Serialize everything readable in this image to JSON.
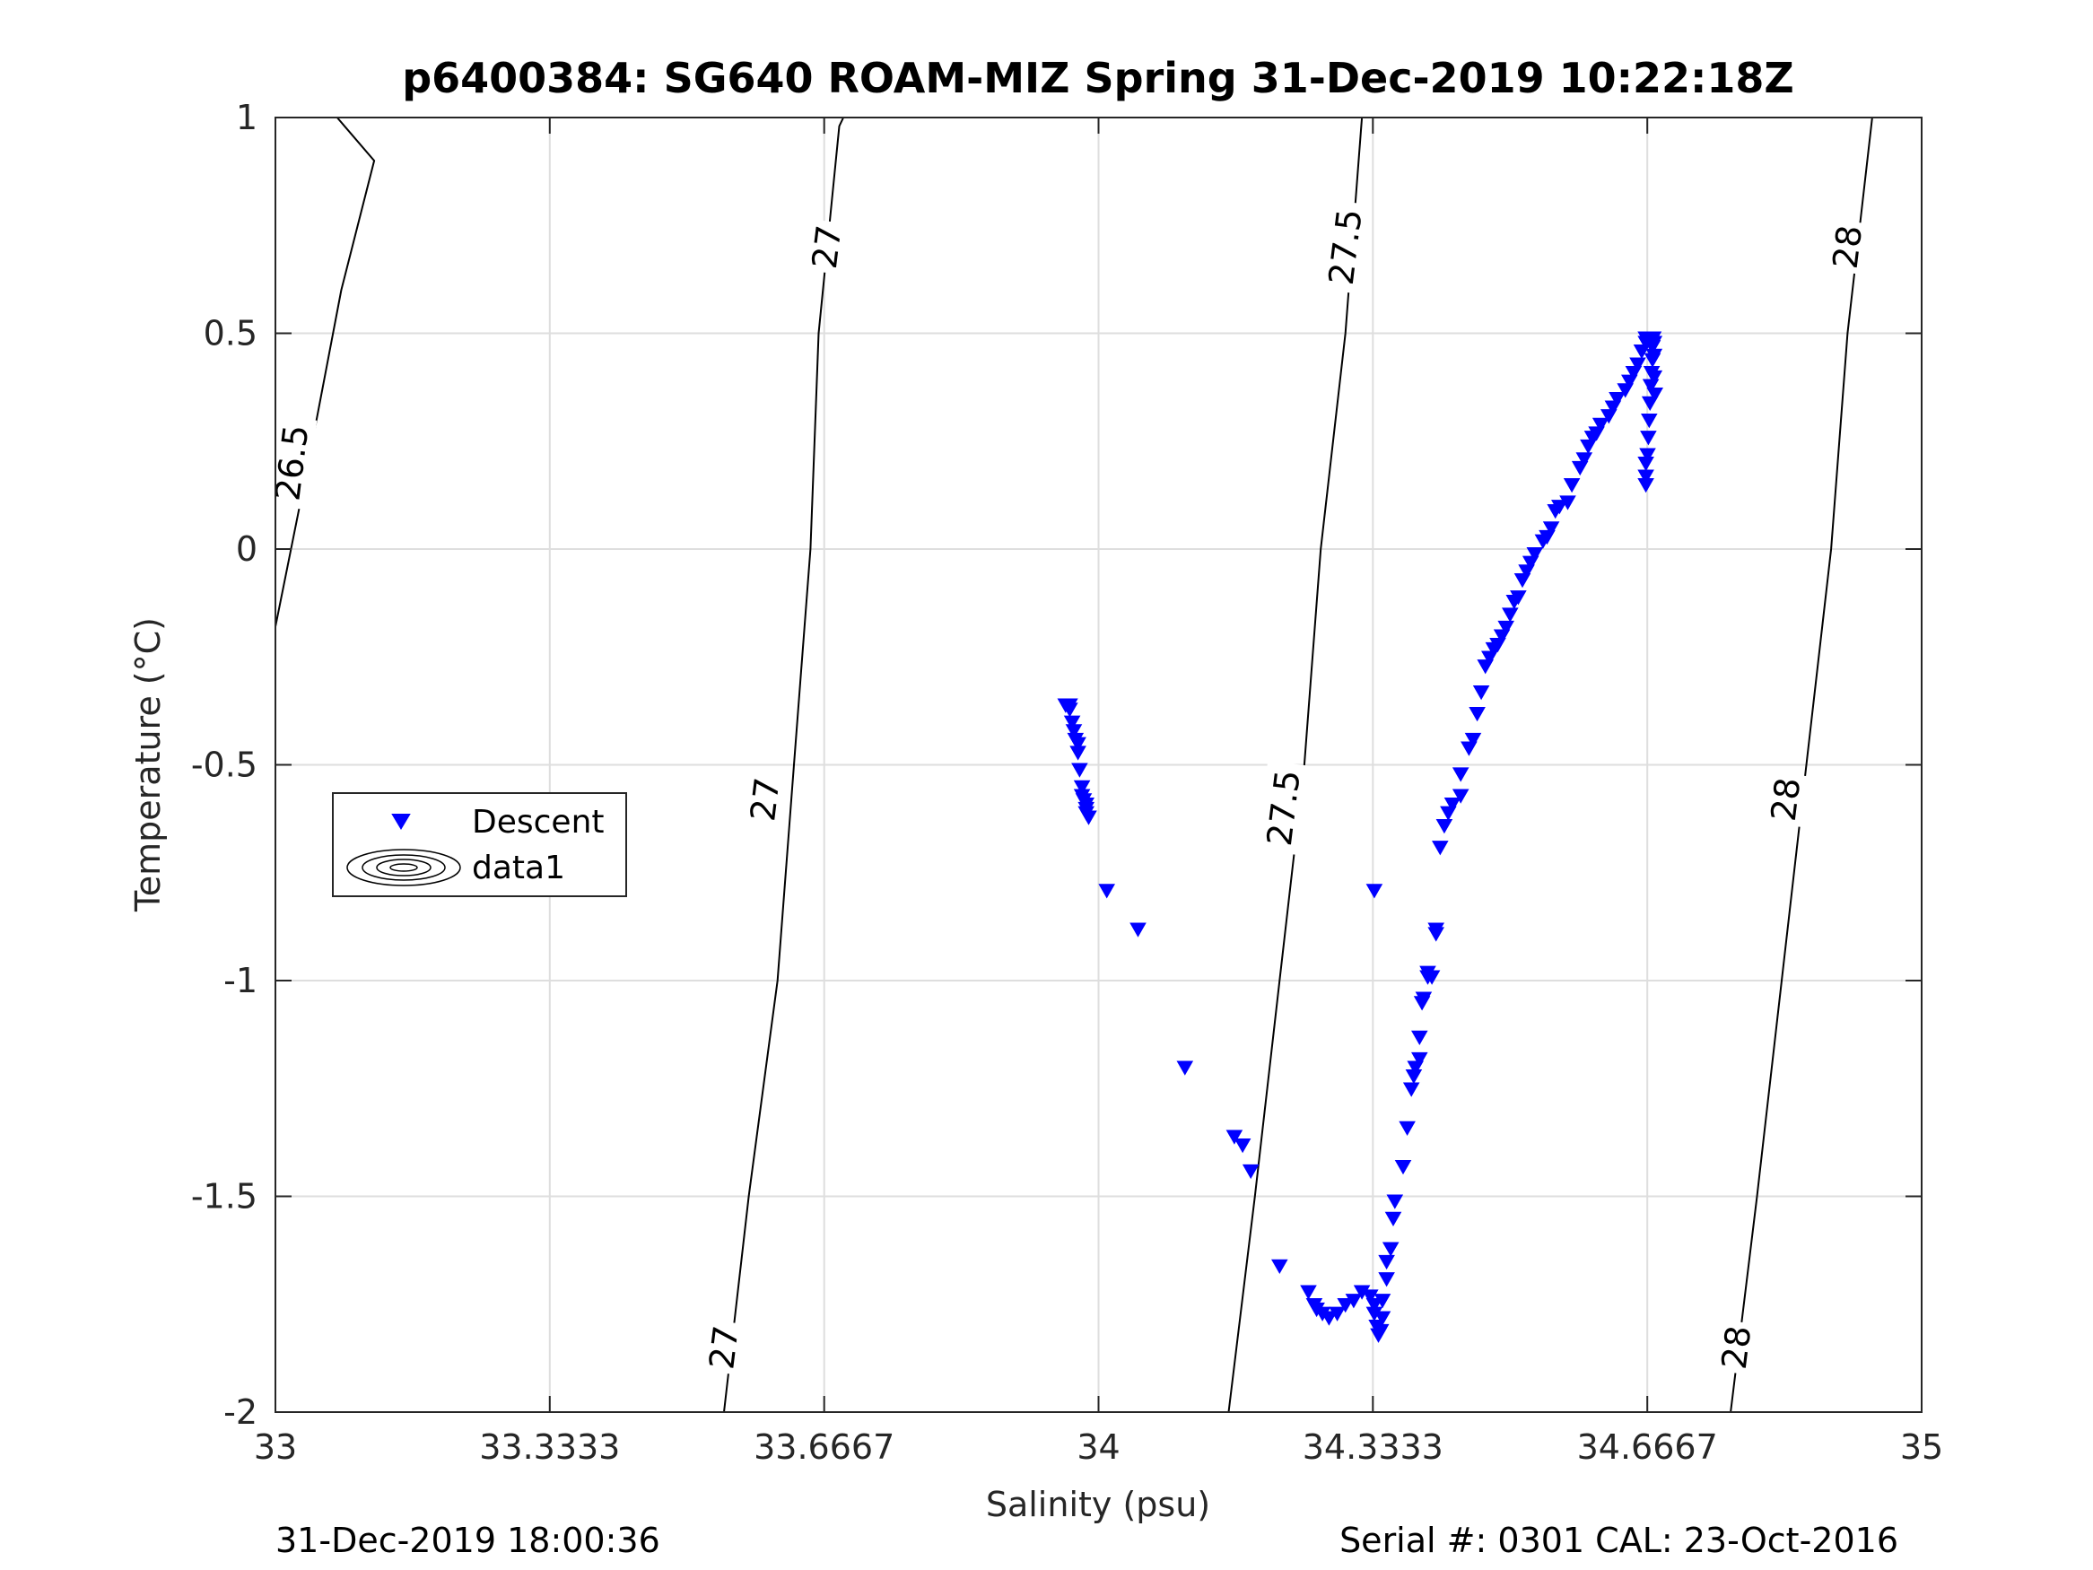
{
  "chart_data": {
    "type": "scatter",
    "title": "p6400384: SG640 ROAM-MIZ Spring 31-Dec-2019 10:22:18Z",
    "xlabel": "Salinity (psu)",
    "ylabel": "Temperature (°C)",
    "xlim": [
      33,
      35
    ],
    "ylim": [
      -2,
      1
    ],
    "xticks": [
      33,
      33.3333,
      33.6667,
      34,
      34.3333,
      34.6667,
      35
    ],
    "xtick_labels": [
      "33",
      "33.3333",
      "33.6667",
      "34",
      "34.3333",
      "34.6667",
      "35"
    ],
    "yticks": [
      -2,
      -1.5,
      -1,
      -0.5,
      0,
      0.5,
      1
    ],
    "ytick_labels": [
      "-2",
      "-1.5",
      "-1",
      "-0.5",
      "0",
      "0.5",
      "1"
    ],
    "grid": true,
    "legend": {
      "placement": "west",
      "entries": [
        {
          "label": "Descent",
          "marker": "triangle-down",
          "color": "#0000ff"
        },
        {
          "label": "data1",
          "marker": "contour",
          "color": "#000000"
        }
      ]
    },
    "contours": [
      {
        "level": "26.5",
        "points": [
          [
            33.0,
            -0.18
          ],
          [
            33.04,
            0.2
          ],
          [
            33.08,
            0.6
          ],
          [
            33.12,
            0.9
          ],
          [
            33.075,
            1.0
          ]
        ],
        "labels": [
          {
            "text": "26.5",
            "x": 33.02,
            "y": 0.2
          }
        ]
      },
      {
        "level": "27",
        "points": [
          [
            33.545,
            -2.0
          ],
          [
            33.575,
            -1.5
          ],
          [
            33.61,
            -1.0
          ],
          [
            33.63,
            -0.5
          ],
          [
            33.65,
            0.0
          ],
          [
            33.66,
            0.5
          ],
          [
            33.685,
            0.98
          ],
          [
            33.69,
            1.0
          ]
        ],
        "labels": [
          {
            "text": "27",
            "x": 33.545,
            "y": -1.85
          },
          {
            "text": "27",
            "x": 33.595,
            "y": -0.58
          },
          {
            "text": "27",
            "x": 33.67,
            "y": 0.7
          }
        ]
      },
      {
        "level": "27.5",
        "points": [
          [
            34.158,
            -2.0
          ],
          [
            34.19,
            -1.5
          ],
          [
            34.22,
            -1.0
          ],
          [
            34.25,
            -0.5
          ],
          [
            34.27,
            0.0
          ],
          [
            34.3,
            0.5
          ],
          [
            34.32,
            1.0
          ]
        ],
        "labels": [
          {
            "text": "27.5",
            "x": 34.225,
            "y": -0.6
          },
          {
            "text": "27.5",
            "x": 34.3,
            "y": 0.7
          }
        ]
      },
      {
        "level": "28",
        "points": [
          [
            34.768,
            -2.0
          ],
          [
            34.8,
            -1.5
          ],
          [
            34.83,
            -1.0
          ],
          [
            34.86,
            -0.5
          ],
          [
            34.89,
            0.0
          ],
          [
            34.91,
            0.5
          ],
          [
            34.94,
            1.0
          ]
        ],
        "labels": [
          {
            "text": "28",
            "x": 34.775,
            "y": -1.85
          },
          {
            "text": "28",
            "x": 34.835,
            "y": -0.58
          },
          {
            "text": "28",
            "x": 34.91,
            "y": 0.7
          }
        ]
      }
    ],
    "series": [
      {
        "name": "Descent",
        "marker": "triangle-down",
        "color": "#0000ff",
        "x": [
          33.96,
          33.965,
          33.965,
          33.968,
          33.97,
          33.972,
          33.975,
          33.975,
          33.977,
          33.98,
          33.98,
          33.982,
          33.985,
          33.985,
          33.985,
          33.988,
          34.01,
          34.048,
          34.105,
          34.165,
          34.175,
          34.185,
          34.22,
          34.255,
          34.262,
          34.265,
          34.272,
          34.28,
          34.29,
          34.3,
          34.31,
          34.32,
          34.33,
          34.335,
          34.335,
          34.338,
          34.34,
          34.343,
          34.345,
          34.345,
          34.35,
          34.35,
          34.355,
          34.358,
          34.335,
          34.36,
          34.37,
          34.375,
          34.38,
          34.383,
          34.385,
          34.39,
          34.39,
          34.393,
          34.395,
          34.4,
          34.4,
          34.405,
          34.41,
          34.415,
          34.41,
          34.42,
          34.425,
          34.43,
          34.44,
          34.44,
          34.45,
          34.455,
          34.46,
          34.465,
          34.47,
          34.475,
          34.48,
          34.485,
          34.49,
          34.495,
          34.5,
          34.505,
          34.51,
          34.515,
          34.52,
          34.525,
          34.53,
          34.54,
          34.545,
          34.55,
          34.555,
          34.56,
          34.57,
          34.575,
          34.585,
          34.59,
          34.595,
          34.6,
          34.605,
          34.61,
          34.62,
          34.625,
          34.63,
          34.64,
          34.645,
          34.65,
          34.655,
          34.66,
          34.665,
          34.665,
          34.665,
          34.665,
          34.665,
          34.667,
          34.668,
          34.669,
          34.67,
          34.671,
          34.672,
          34.673,
          34.673,
          34.674,
          34.675,
          34.675,
          34.675,
          34.676
        ],
        "y": [
          -0.36,
          -0.36,
          -0.37,
          -0.4,
          -0.42,
          -0.44,
          -0.45,
          -0.47,
          -0.51,
          -0.55,
          -0.57,
          -0.58,
          -0.59,
          -0.6,
          -0.61,
          -0.62,
          -0.79,
          -0.88,
          -1.2,
          -1.36,
          -1.38,
          -1.44,
          -1.66,
          -1.72,
          -1.75,
          -1.76,
          -1.77,
          -1.78,
          -1.77,
          -1.75,
          -1.74,
          -1.72,
          -1.73,
          -1.75,
          -1.77,
          -1.8,
          -1.82,
          -1.81,
          -1.78,
          -1.74,
          -1.69,
          -1.65,
          -1.62,
          -1.55,
          -0.79,
          -1.51,
          -1.43,
          -1.34,
          -1.25,
          -1.22,
          -1.2,
          -1.18,
          -1.13,
          -1.05,
          -1.04,
          -0.98,
          -0.99,
          -0.99,
          -0.88,
          -0.69,
          -0.89,
          -0.64,
          -0.61,
          -0.59,
          -0.57,
          -0.52,
          -0.46,
          -0.44,
          -0.38,
          -0.33,
          -0.27,
          -0.25,
          -0.23,
          -0.22,
          -0.2,
          -0.18,
          -0.15,
          -0.12,
          -0.11,
          -0.07,
          -0.05,
          -0.03,
          -0.01,
          0.02,
          0.03,
          0.05,
          0.09,
          0.1,
          0.11,
          0.15,
          0.19,
          0.21,
          0.24,
          0.26,
          0.27,
          0.29,
          0.31,
          0.33,
          0.35,
          0.37,
          0.39,
          0.41,
          0.43,
          0.46,
          0.48,
          0.49,
          0.2,
          0.17,
          0.15,
          0.22,
          0.26,
          0.3,
          0.34,
          0.38,
          0.41,
          0.44,
          0.47,
          0.49,
          0.48,
          0.45,
          0.4,
          0.36
        ]
      }
    ],
    "footer_left": "31-Dec-2019 18:00:36",
    "footer_right": "Serial #: 0301  CAL: 23-Oct-2016"
  }
}
